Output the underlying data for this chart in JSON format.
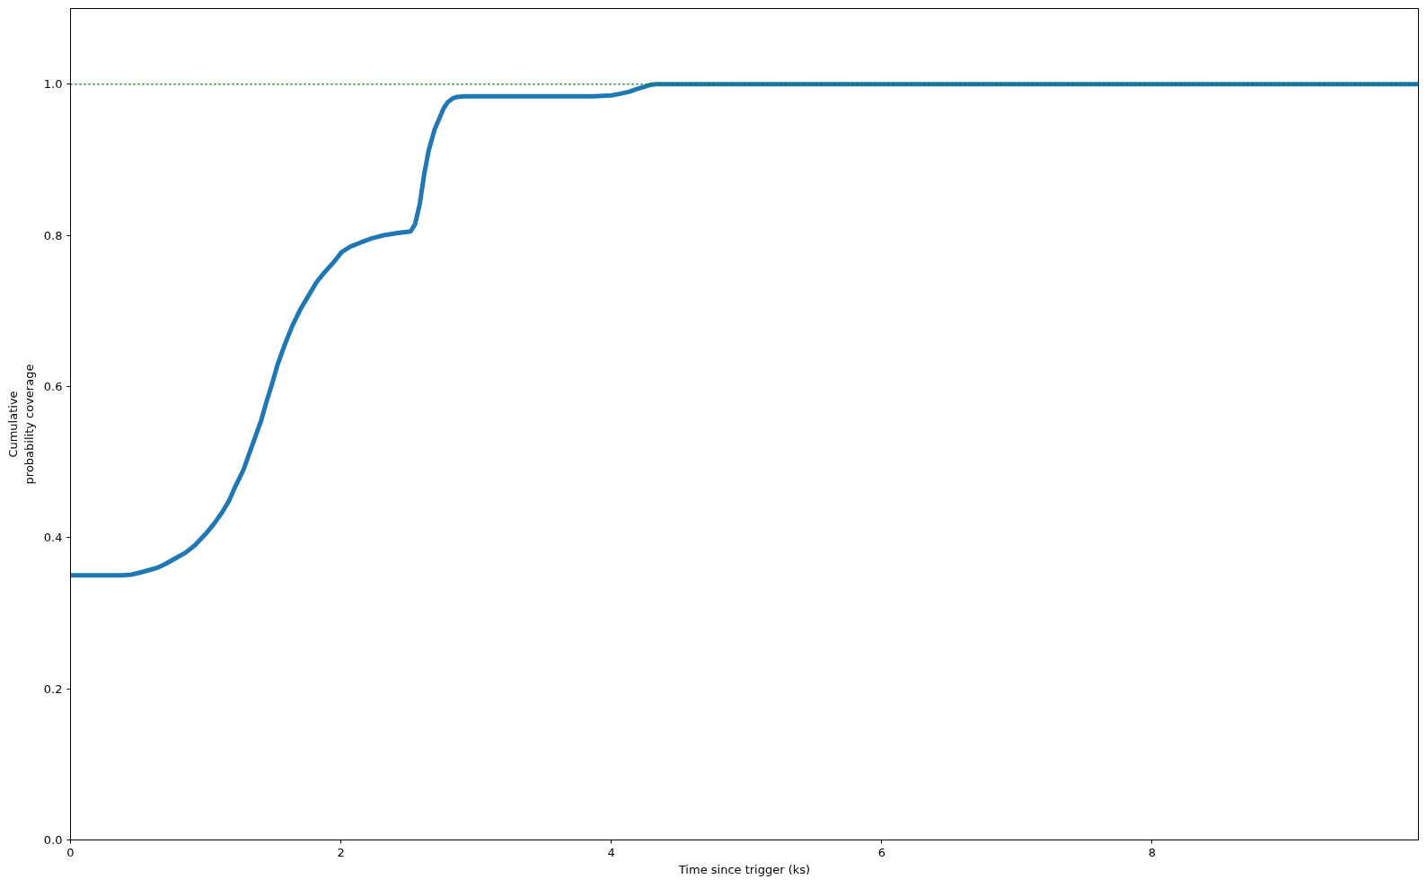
{
  "chart_data": {
    "type": "line",
    "xlabel": "Time since trigger (ks)",
    "ylabel": "Cumulative\nprobability coverage",
    "xlim": [
      0,
      9.97
    ],
    "ylim": [
      0,
      1.1
    ],
    "xticks": [
      0,
      2,
      4,
      6,
      8
    ],
    "yticks": [
      {
        "value": 0,
        "label": "0.0"
      },
      0.2,
      0.4,
      0.6,
      0.8,
      {
        "value": 1,
        "label": "1.0"
      }
    ],
    "line_style": "solid",
    "series": [
      {
        "color": "#1f77b4",
        "x": [
          0,
          0.3,
          0.38,
          0.45,
          0.52,
          0.58,
          0.64,
          0.7,
          0.78,
          0.85,
          0.92,
          1.0,
          1.06,
          1.12,
          1.17,
          1.22,
          1.28,
          1.32,
          1.36,
          1.41,
          1.45,
          1.49,
          1.53,
          1.58,
          1.64,
          1.7,
          1.76,
          1.82,
          1.874,
          1.94,
          2.007,
          2.07,
          2.14,
          2.23,
          2.317,
          2.42,
          2.516,
          2.549,
          2.583,
          2.616,
          2.649,
          2.693,
          2.76,
          2.79,
          2.826,
          2.86,
          2.915,
          3.867,
          4.0,
          4.06,
          4.133,
          4.2,
          4.288,
          4.33,
          9.97
        ],
        "values": [
          0.35,
          0.35,
          0.35,
          0.351,
          0.354,
          0.357,
          0.36,
          0.365,
          0.373,
          0.38,
          0.39,
          0.405,
          0.418,
          0.433,
          0.448,
          0.468,
          0.49,
          0.51,
          0.53,
          0.555,
          0.58,
          0.603,
          0.628,
          0.653,
          0.68,
          0.702,
          0.72,
          0.738,
          0.75,
          0.763,
          0.778,
          0.785,
          0.79,
          0.796,
          0.8,
          0.803,
          0.805,
          0.815,
          0.841,
          0.881,
          0.912,
          0.94,
          0.968,
          0.976,
          0.981,
          0.983,
          0.984,
          0.984,
          0.985,
          0.987,
          0.99,
          0.994,
          0.999,
          1.0,
          1.0
        ]
      }
    ],
    "ref_lines": [
      {
        "axis": "y",
        "value": 1,
        "color": "#008000",
        "line_style": "dotted"
      }
    ]
  }
}
